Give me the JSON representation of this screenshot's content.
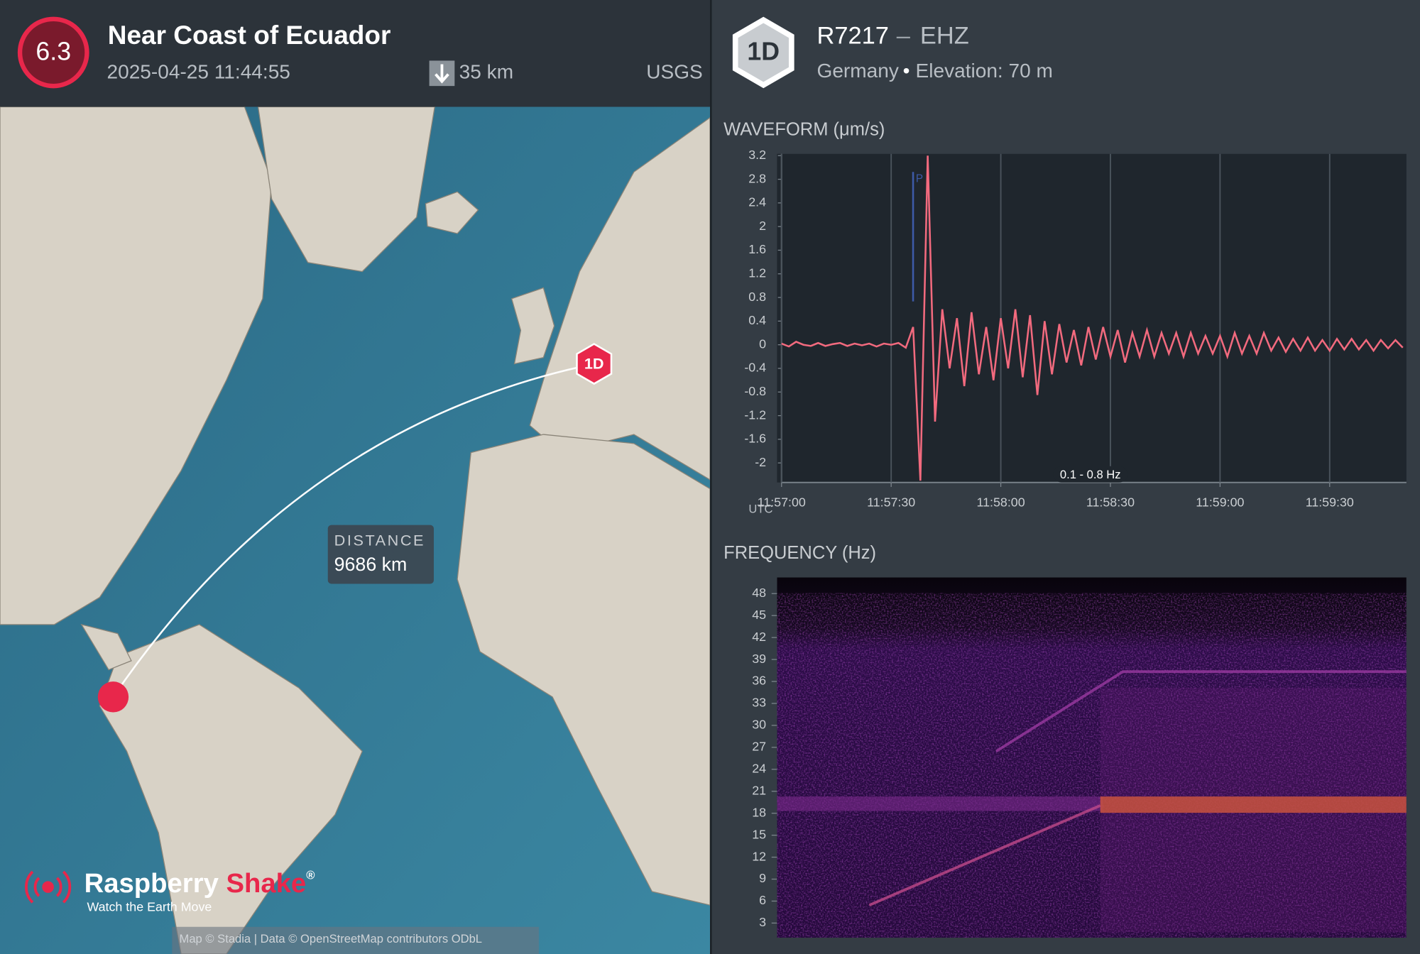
{
  "event": {
    "magnitude": "6.3",
    "title": "Near Coast of Ecuador",
    "time": "2025-04-25 11:44:55",
    "depth": "35 km",
    "source": "USGS"
  },
  "station": {
    "badge": "1D",
    "code": "R7217",
    "separator": "–",
    "channel": "EHZ",
    "location": "Germany",
    "bullet": "•",
    "elevation": "Elevation: 70 m"
  },
  "map": {
    "station_marker": "1D",
    "distance_label": "DISTANCE",
    "distance": "9686 km",
    "brand": "Raspberry",
    "brand_accent": "Shake",
    "registered": "®",
    "tagline": "Watch the Earth Move",
    "attribution": "Map © Stadia | Data © OpenStreetMap contributors ODbL"
  },
  "chart_data": [
    {
      "type": "line",
      "title": "WAVEFORM (μm/s)",
      "x_label": "UTC",
      "filter": "0.1 - 0.8 Hz",
      "x": [
        "11:57:00",
        "11:57:02",
        "11:57:04",
        "11:57:06",
        "11:57:08",
        "11:57:10",
        "11:57:12",
        "11:57:14",
        "11:57:16",
        "11:57:18",
        "11:57:20",
        "11:57:22",
        "11:57:24",
        "11:57:26",
        "11:57:28",
        "11:57:30",
        "11:57:32",
        "11:57:34",
        "11:57:36",
        "11:57:38",
        "11:57:40",
        "11:57:42",
        "11:57:44",
        "11:57:46",
        "11:57:48",
        "11:57:50",
        "11:57:52",
        "11:57:54",
        "11:57:56",
        "11:57:58",
        "11:58:00",
        "11:58:02",
        "11:58:04",
        "11:58:06",
        "11:58:08",
        "11:58:10",
        "11:58:12",
        "11:58:14",
        "11:58:16",
        "11:58:18",
        "11:58:20",
        "11:58:22",
        "11:58:24",
        "11:58:26",
        "11:58:28",
        "11:58:30",
        "11:58:32",
        "11:58:34",
        "11:58:36",
        "11:58:38",
        "11:58:40",
        "11:58:42",
        "11:58:44",
        "11:58:46",
        "11:58:48",
        "11:58:50",
        "11:58:52",
        "11:58:54",
        "11:58:56",
        "11:58:58",
        "11:59:00",
        "11:59:02",
        "11:59:04",
        "11:59:06",
        "11:59:08",
        "11:59:10",
        "11:59:12",
        "11:59:14",
        "11:59:16",
        "11:59:18",
        "11:59:20",
        "11:59:22",
        "11:59:24",
        "11:59:26",
        "11:59:28",
        "11:59:30",
        "11:59:32",
        "11:59:34",
        "11:59:36",
        "11:59:38",
        "11:59:40",
        "11:59:42",
        "11:59:44",
        "11:59:46",
        "11:59:48",
        "11:59:50"
      ],
      "series": [
        {
          "color": "#f26a7e",
          "values": [
            0.02,
            -0.03,
            0.05,
            0,
            -0.02,
            0.03,
            -0.02,
            0.01,
            0.03,
            -0.02,
            0.02,
            -0.01,
            0.02,
            -0.03,
            0.02,
            0,
            0.03,
            -0.05,
            0.3,
            -2.3,
            3.2,
            -1.3,
            0.6,
            -0.4,
            0.45,
            -0.7,
            0.55,
            -0.5,
            0.3,
            -0.6,
            0.45,
            -0.4,
            0.6,
            -0.55,
            0.5,
            -0.85,
            0.4,
            -0.5,
            0.35,
            -0.3,
            0.25,
            -0.35,
            0.3,
            -0.25,
            0.3,
            -0.2,
            0.25,
            -0.3,
            0.2,
            -0.2,
            0.25,
            -0.2,
            0.2,
            -0.15,
            0.2,
            -0.2,
            0.2,
            -0.15,
            0.15,
            -0.15,
            0.15,
            -0.2,
            0.2,
            -0.15,
            0.15,
            -0.15,
            0.2,
            -0.1,
            0.12,
            -0.12,
            0.1,
            -0.1,
            0.12,
            -0.1,
            0.08,
            -0.1,
            0.1,
            -0.08,
            0.1,
            -0.08,
            0.08,
            -0.1,
            0.08,
            -0.06,
            0.08,
            -0.05
          ]
        }
      ],
      "xlim": [
        "11:57:00",
        "11:59:51"
      ],
      "xticks": [
        "11:57:00",
        "11:57:30",
        "11:58:00",
        "11:58:30",
        "11:59:00",
        "11:59:30"
      ],
      "ylim": [
        -2.33,
        3.23
      ],
      "yticks": [
        3.2,
        2.8,
        2.4,
        2,
        1.6,
        1.2,
        0.8,
        0.4,
        0,
        -0.4,
        -0.8,
        -1.2,
        -1.6,
        -2
      ],
      "grid": true,
      "annotations": [
        {
          "x": "11:57:36",
          "text": "P"
        }
      ]
    },
    {
      "type": "spectrogram",
      "title": "FREQUENCY (Hz)",
      "ylim": [
        1,
        50.2
      ],
      "yticks": [
        48,
        45,
        42,
        39,
        36,
        33,
        30,
        27,
        24,
        21,
        18,
        15,
        12,
        9,
        6,
        3
      ]
    }
  ]
}
